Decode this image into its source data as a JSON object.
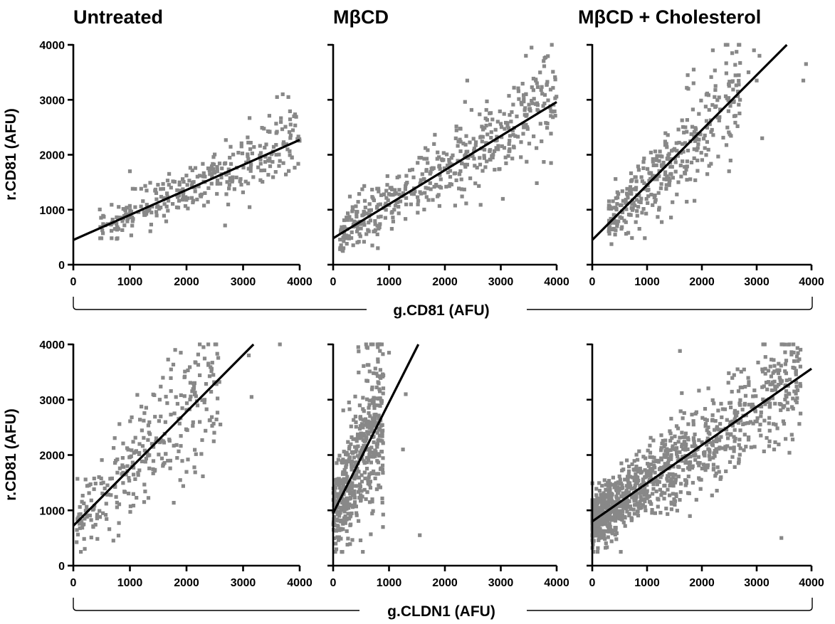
{
  "panel_titles": [
    "Untreated",
    "MβCD",
    "MβCD + Cholesterol"
  ],
  "row_xlabels": [
    "g.CD81 (AFU)",
    "g.CLDN1 (AFU)"
  ],
  "ylabel": "r.CD81 (AFU)",
  "point_color": "#888888",
  "chart_data": [
    {
      "type": "scatter",
      "row": 0,
      "col": 0,
      "title": "Untreated",
      "xlabel": "g.CD81 (AFU)",
      "ylabel": "r.CD81 (AFU)",
      "xlim": [
        0,
        4000
      ],
      "ylim": [
        0,
        4000
      ],
      "xticks": [
        0,
        1000,
        2000,
        3000,
        4000
      ],
      "yticks": [
        0,
        1000,
        2000,
        3000,
        4000
      ],
      "fit": {
        "slope": 0.455,
        "intercept": 450
      },
      "cloud": {
        "n": 330,
        "x_range": [
          450,
          4000
        ],
        "noise": 230,
        "seed": 11
      },
      "notable_points": [
        [
          3600,
          3050
        ],
        [
          3700,
          3100
        ],
        [
          3800,
          3050
        ],
        [
          3900,
          2700
        ],
        [
          1000,
          1700
        ]
      ]
    },
    {
      "type": "scatter",
      "row": 0,
      "col": 1,
      "title": "MβCD",
      "xlabel": "g.CD81 (AFU)",
      "ylabel": "",
      "xlim": [
        0,
        4000
      ],
      "ylim": [
        0,
        4000
      ],
      "xticks": [
        0,
        1000,
        2000,
        3000,
        4000
      ],
      "yticks": [
        0,
        1000,
        2000,
        3000,
        4000
      ],
      "fit": {
        "slope": 0.62,
        "intercept": 480
      },
      "cloud": {
        "n": 480,
        "x_range": [
          100,
          4000
        ],
        "noise": 330,
        "seed": 23
      },
      "notable_points": [
        [
          3550,
          3950
        ],
        [
          3450,
          3800
        ],
        [
          2400,
          3350
        ],
        [
          800,
          300
        ],
        [
          700,
          350
        ],
        [
          3900,
          1850
        ]
      ]
    },
    {
      "type": "scatter",
      "row": 0,
      "col": 2,
      "title": "MβCD + Cholesterol",
      "xlabel": "g.CD81 (AFU)",
      "ylabel": "",
      "xlim": [
        0,
        4000
      ],
      "ylim": [
        0,
        4000
      ],
      "xticks": [
        0,
        1000,
        2000,
        3000,
        4000
      ],
      "yticks": [
        0,
        1000,
        2000,
        3000,
        4000
      ],
      "fit": {
        "slope": 1.0,
        "intercept": 450
      },
      "cloud": {
        "n": 360,
        "x_range": [
          300,
          2700
        ],
        "noise": 380,
        "seed": 37
      },
      "notable_points": [
        [
          2200,
          3900
        ],
        [
          2950,
          3900
        ],
        [
          3050,
          3800
        ],
        [
          3900,
          3650
        ],
        [
          3850,
          3350
        ],
        [
          3100,
          2300
        ],
        [
          3000,
          3350
        ],
        [
          2850,
          3500
        ],
        [
          1850,
          3550
        ]
      ]
    },
    {
      "type": "scatter",
      "row": 1,
      "col": 0,
      "title": "",
      "xlabel": "g.CLDN1 (AFU)",
      "ylabel": "r.CD81 (AFU)",
      "xlim": [
        0,
        4000
      ],
      "ylim": [
        0,
        4000
      ],
      "xticks": [
        0,
        1000,
        2000,
        3000,
        4000
      ],
      "yticks": [
        0,
        1000,
        2000,
        3000,
        4000
      ],
      "fit": {
        "slope": 1.03,
        "intercept": 720
      },
      "cloud": {
        "n": 300,
        "x_range": [
          50,
          2600
        ],
        "noise": 480,
        "seed": 51
      },
      "notable_points": [
        [
          3650,
          4000
        ],
        [
          3150,
          3050
        ],
        [
          3100,
          3800
        ],
        [
          2300,
          3950
        ],
        [
          1800,
          3900
        ],
        [
          1900,
          3850
        ]
      ]
    },
    {
      "type": "scatter",
      "row": 1,
      "col": 1,
      "title": "",
      "xlabel": "g.CLDN1 (AFU)",
      "ylabel": "",
      "xlim": [
        0,
        4000
      ],
      "ylim": [
        0,
        4000
      ],
      "xticks": [
        0,
        1000,
        2000,
        3000,
        4000
      ],
      "yticks": [
        0,
        1000,
        2000,
        3000,
        4000
      ],
      "fit": {
        "slope": 2.0,
        "intercept": 950
      },
      "cloud": {
        "n": 520,
        "x_range": [
          0,
          900
        ],
        "noise": 600,
        "seed": 67
      },
      "notable_points": [
        [
          1550,
          550
        ],
        [
          1300,
          3100
        ],
        [
          1250,
          2100
        ],
        [
          1000,
          3850
        ],
        [
          450,
          3950
        ],
        [
          600,
          3950
        ],
        [
          800,
          3950
        ]
      ]
    },
    {
      "type": "scatter",
      "row": 1,
      "col": 2,
      "title": "",
      "xlabel": "g.CLDN1 (AFU)",
      "ylabel": "",
      "xlim": [
        0,
        4000
      ],
      "ylim": [
        0,
        4000
      ],
      "xticks": [
        0,
        1000,
        2000,
        3000,
        4000
      ],
      "yticks": [
        0,
        1000,
        2000,
        3000,
        4000
      ],
      "fit": {
        "slope": 0.69,
        "intercept": 800
      },
      "cloud": {
        "n": 1100,
        "x_range": [
          0,
          3800
        ],
        "noise": 400,
        "seed": 83
      },
      "notable_points": [
        [
          1600,
          3880
        ],
        [
          3450,
          500
        ],
        [
          3800,
          2750
        ],
        [
          3750,
          3700
        ],
        [
          3400,
          3650
        ],
        [
          3250,
          3600
        ],
        [
          2650,
          3550
        ]
      ]
    }
  ]
}
